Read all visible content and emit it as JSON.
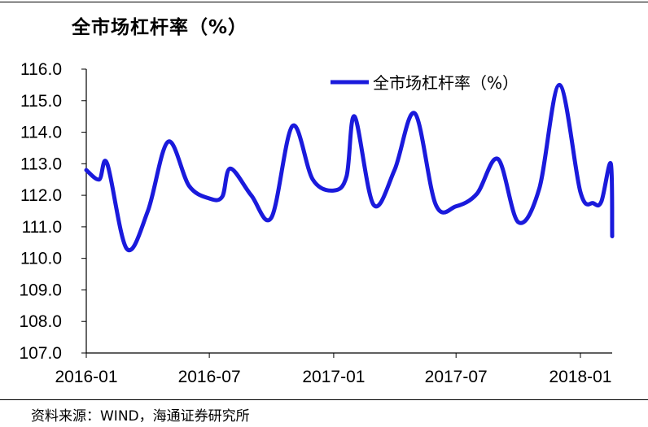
{
  "title": "全市场杠杆率（%）",
  "source": "资料来源：WIND，海通证券研究所",
  "chart_data": {
    "type": "line",
    "title": "全市场杠杆率（%）",
    "xlabel": "",
    "ylabel": "",
    "ylim": [
      107.0,
      116.0
    ],
    "yticks": [
      "116.0",
      "115.0",
      "114.0",
      "113.0",
      "112.0",
      "111.0",
      "110.0",
      "109.0",
      "108.0",
      "107.0"
    ],
    "xticks": [
      "2016-01",
      "2016-07",
      "2017-01",
      "2017-07",
      "2018-01"
    ],
    "grid": false,
    "legend_position": "top-right",
    "color": "#1a1adc",
    "series": [
      {
        "name": "全市场杠杆率（%）",
        "x": [
          "2016-01",
          "2016-01-20",
          "2016-02",
          "2016-03",
          "2016-04",
          "2016-05",
          "2016-06",
          "2016-07",
          "2016-07-20",
          "2016-08",
          "2016-09",
          "2016-10",
          "2016-11",
          "2016-12",
          "2017-01",
          "2017-01-20",
          "2017-02",
          "2017-03",
          "2017-04",
          "2017-05",
          "2017-06",
          "2017-07",
          "2017-08",
          "2017-09",
          "2017-10",
          "2017-11",
          "2017-12",
          "2018-01",
          "2018-01-20",
          "2018-02",
          "2018-02-15",
          "2018-02-17"
        ],
        "y": [
          112.8,
          112.5,
          113.0,
          110.3,
          111.5,
          113.7,
          112.3,
          111.9,
          111.95,
          112.85,
          112.0,
          111.3,
          114.2,
          112.5,
          112.15,
          112.6,
          114.5,
          111.7,
          112.8,
          114.6,
          111.7,
          111.65,
          112.05,
          113.15,
          111.15,
          112.2,
          115.5,
          112.1,
          111.75,
          111.8,
          113.0,
          110.7
        ]
      }
    ]
  }
}
